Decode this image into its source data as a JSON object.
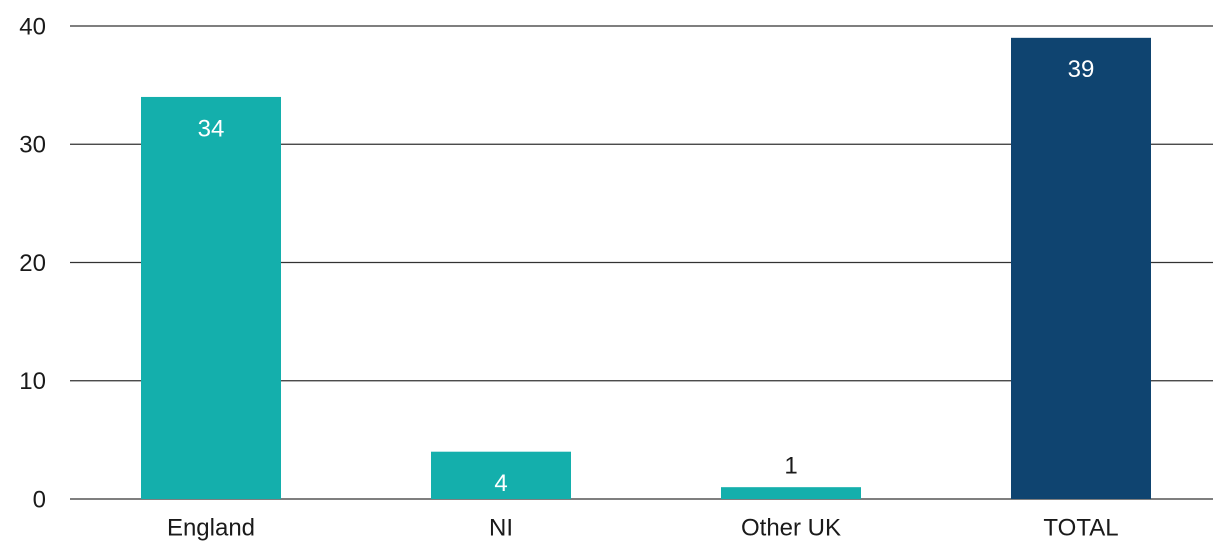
{
  "chart_data": {
    "type": "bar",
    "categories": [
      "England",
      "NI",
      "Other UK",
      "TOTAL"
    ],
    "values": [
      34,
      4,
      1,
      39
    ],
    "colors": [
      "#14afac",
      "#14afac",
      "#14afac",
      "#0f4470"
    ],
    "ylim": [
      0,
      40
    ],
    "yticks": [
      0,
      10,
      20,
      30,
      40
    ],
    "grid": true
  }
}
